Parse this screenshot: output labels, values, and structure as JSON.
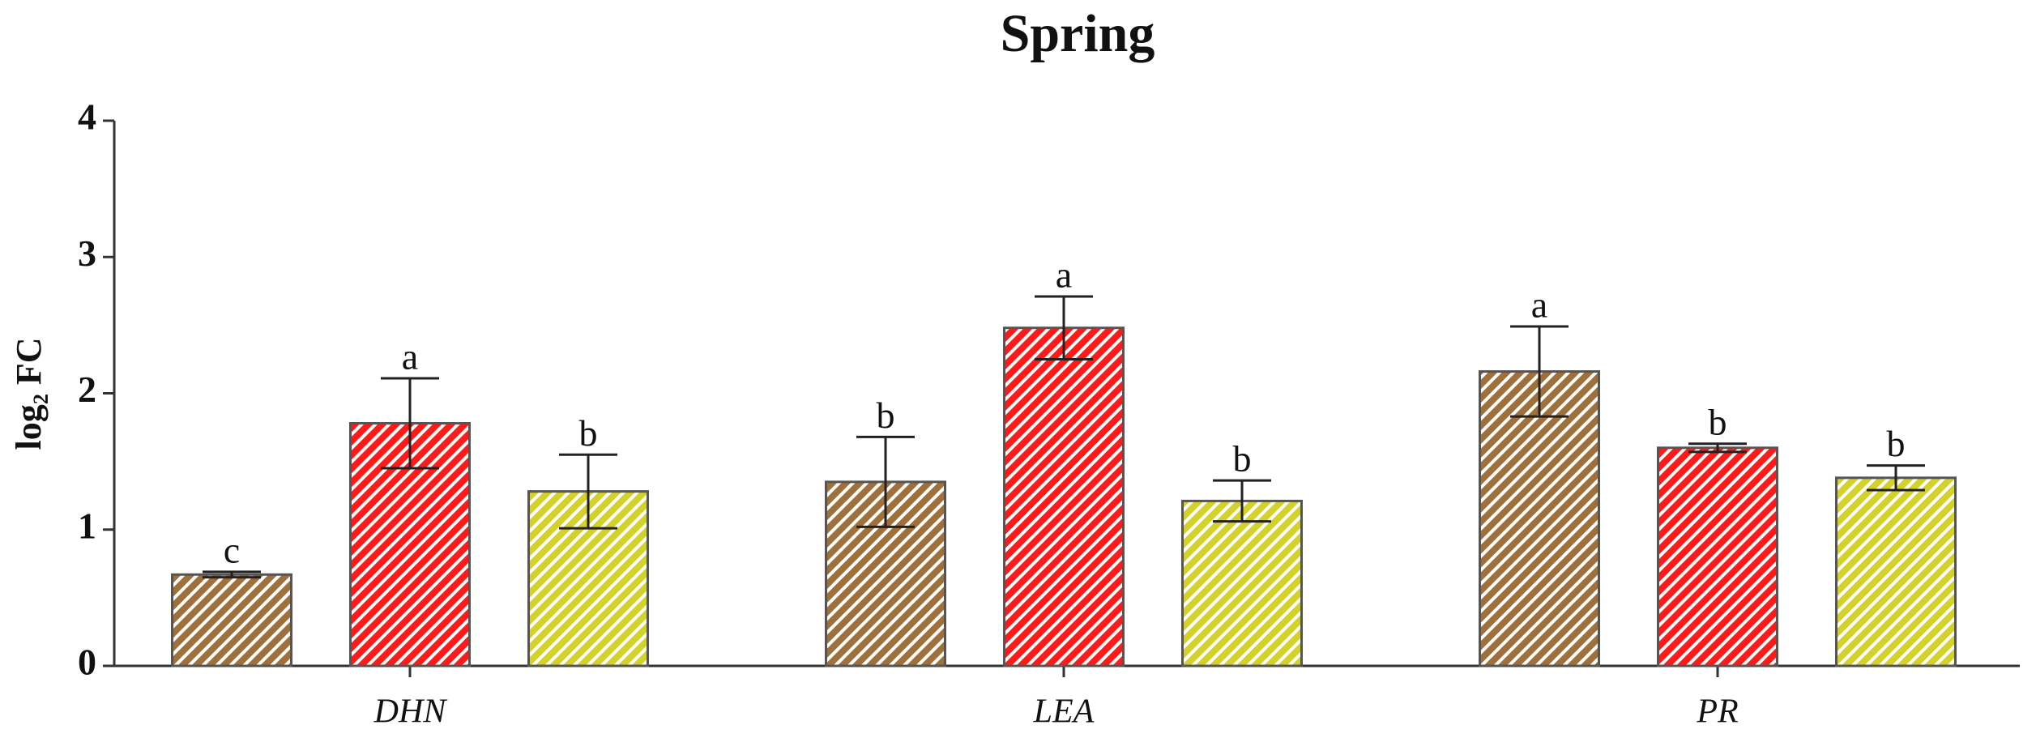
{
  "chart_data": {
    "type": "bar",
    "title": "Spring",
    "y_label": "log₂ FC",
    "categories": [
      "DHN",
      "LEA",
      "PR"
    ],
    "series": [
      {
        "color": "#a0703a",
        "values": [
          0.67,
          1.35,
          2.16
        ],
        "errors": [
          0.02,
          0.33,
          0.33
        ],
        "letters": [
          "c",
          "b",
          "a"
        ]
      },
      {
        "color": "#ff1a1a",
        "values": [
          1.78,
          2.48,
          1.6
        ],
        "errors": [
          0.33,
          0.23,
          0.03
        ],
        "letters": [
          "a",
          "a",
          "b"
        ]
      },
      {
        "color": "#d2d22a",
        "values": [
          1.28,
          1.21,
          1.38
        ],
        "errors": [
          0.27,
          0.15,
          0.09
        ],
        "letters": [
          "b",
          "b",
          "b"
        ]
      }
    ],
    "ylim": [
      0,
      4
    ],
    "yticks": [
      0,
      1,
      2,
      3,
      4
    ]
  }
}
